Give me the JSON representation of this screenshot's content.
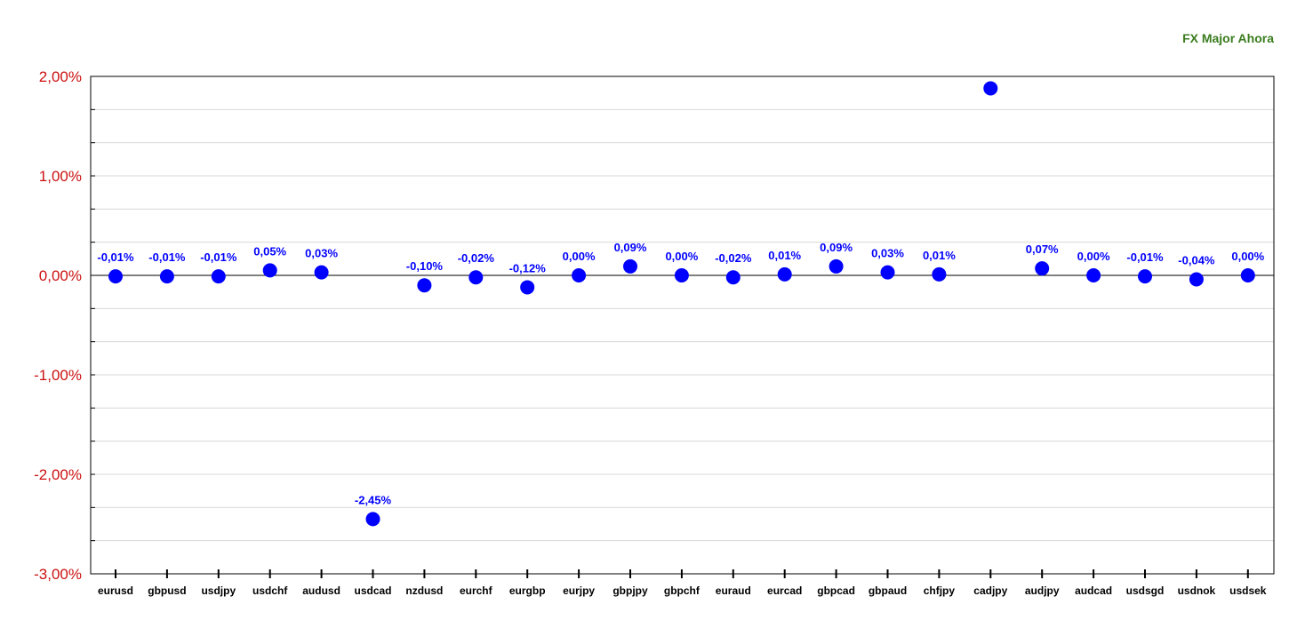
{
  "chart_data": {
    "type": "scatter",
    "title": "FX Major Ahora",
    "categories": [
      "eurusd",
      "gbpusd",
      "usdjpy",
      "usdchf",
      "audusd",
      "usdcad",
      "nzdusd",
      "eurchf",
      "eurgbp",
      "eurjpy",
      "gbpjpy",
      "gbpchf",
      "euraud",
      "eurcad",
      "gbpcad",
      "gbpaud",
      "chfjpy",
      "cadjpy",
      "audjpy",
      "audcad",
      "usdsgd",
      "usdnok",
      "usdsek"
    ],
    "values": [
      -0.01,
      -0.01,
      -0.01,
      0.05,
      0.03,
      -2.45,
      -0.1,
      -0.02,
      -0.12,
      0.0,
      0.09,
      0.0,
      -0.02,
      0.01,
      0.09,
      0.03,
      0.01,
      1.88,
      0.07,
      0.0,
      -0.01,
      -0.04,
      0.0
    ],
    "data_labels": [
      "-0,01%",
      "-0,01%",
      "-0,01%",
      "0,05%",
      "0,03%",
      "-2,45%",
      "-0,10%",
      "-0,02%",
      "-0,12%",
      "0,00%",
      "0,09%",
      "0,00%",
      "-0,02%",
      "0,01%",
      "0,09%",
      "0,03%",
      "0,01%",
      "",
      "0,07%",
      "0,00%",
      "-0,01%",
      "-0,04%",
      "0,00%"
    ],
    "ylim": [
      -3,
      2
    ],
    "yticks": [
      2,
      1,
      0,
      -1,
      -2,
      -3
    ],
    "ytick_labels": [
      "2,00%",
      "1,00%",
      "0,00%",
      "-1,00%",
      "-2,00%",
      "-3,00%"
    ],
    "grid": true,
    "colors": {
      "marker": "#0000ff",
      "label": "#0000ff",
      "ytick": "#cc1111",
      "title": "#3a7d1e",
      "grid": "#d8d8d8"
    }
  }
}
